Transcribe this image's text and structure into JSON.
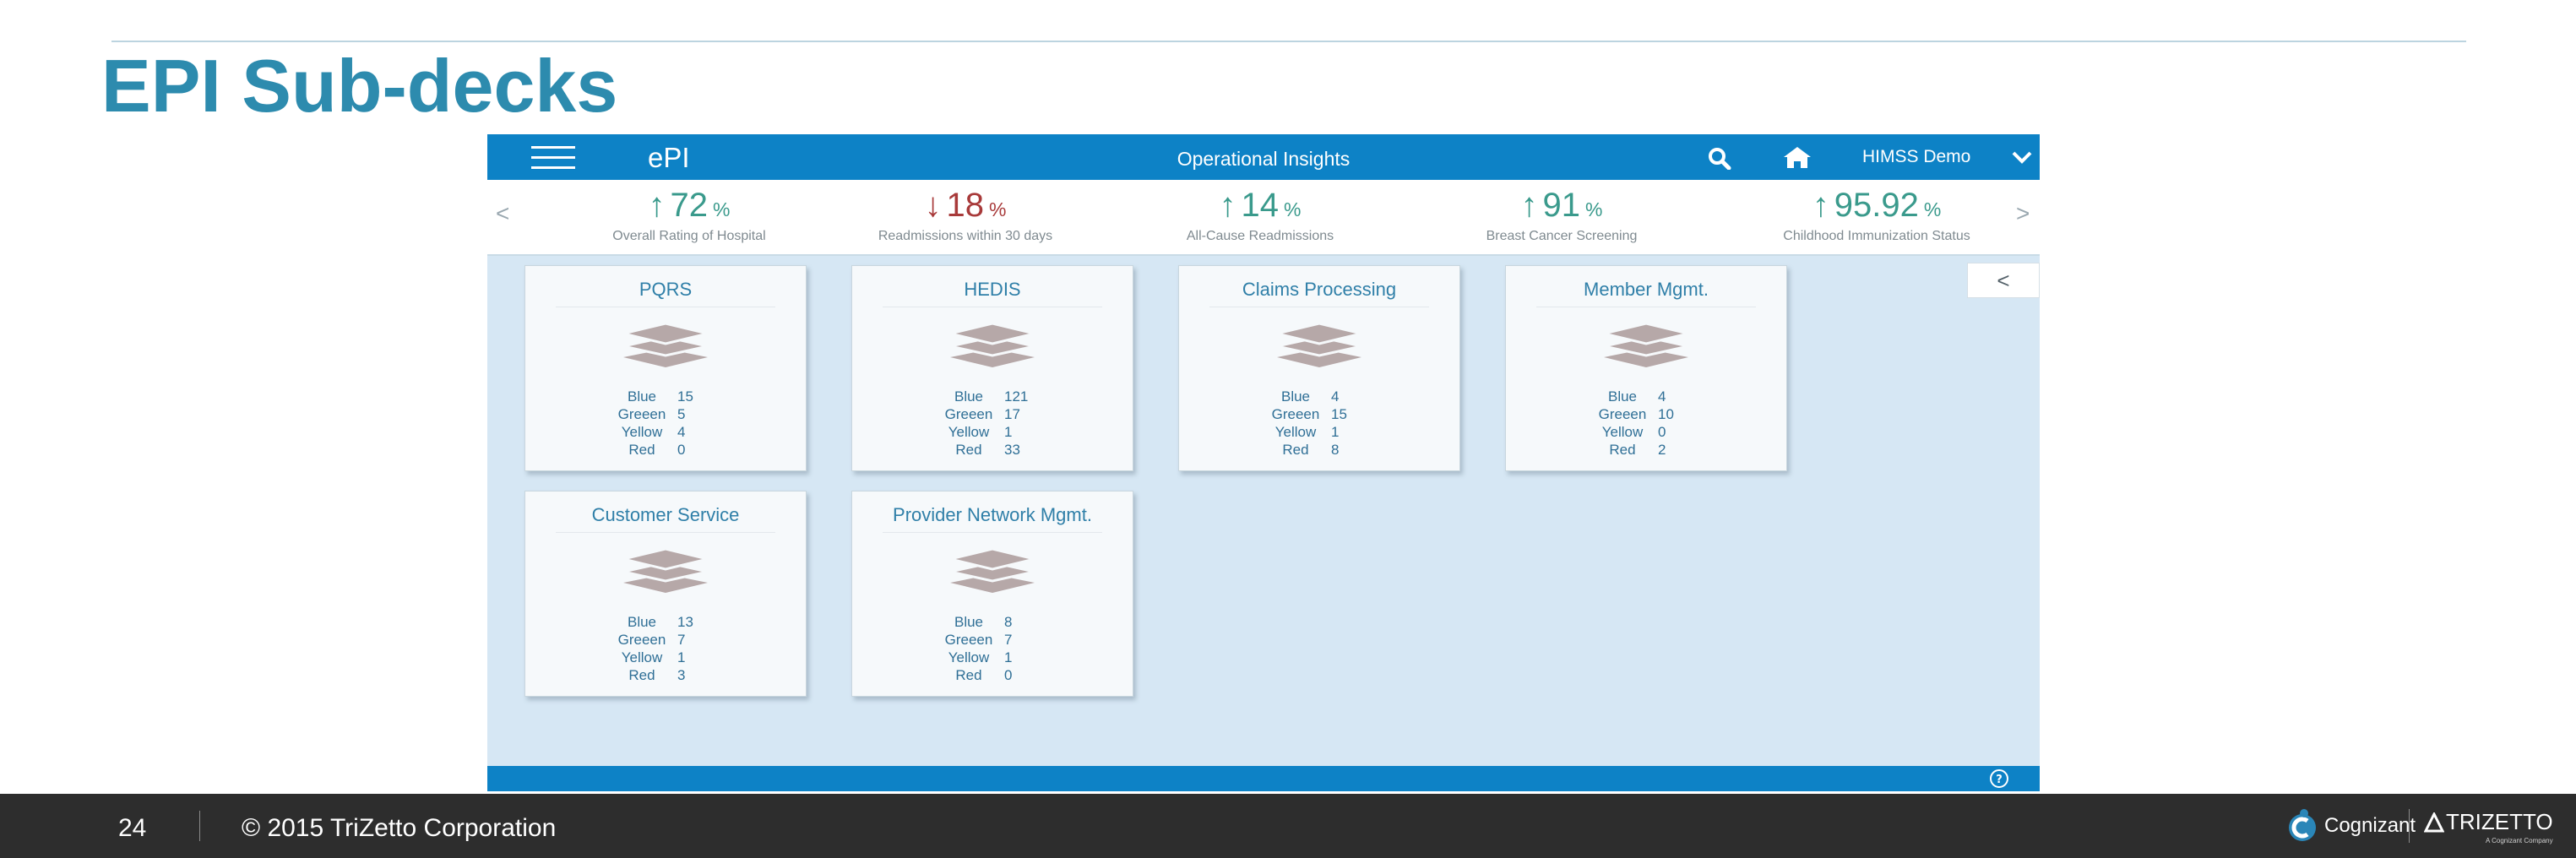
{
  "slide": {
    "title": "EPI Sub-decks",
    "page_number": "24",
    "copyright": "© 2015 TriZetto Corporation",
    "logos": {
      "cognizant": "Cognizant",
      "trizetto": "TRIZETTO",
      "trizetto_sub": "A Cognizant Company"
    }
  },
  "app": {
    "name": "ePI",
    "title": "Operational Insights",
    "user": "HIMSS Demo",
    "icons": {
      "menu": "hamburger-icon",
      "search": "search-icon",
      "home": "home-icon",
      "user_menu": "chevron-down-icon",
      "help": "help-icon",
      "collapse": "chevron-left-icon"
    },
    "colors": {
      "header": "#0d82c6",
      "background": "#d6e7f4",
      "up_value": "#3a9a8c",
      "down_value": "#a83a3a",
      "card_title": "#2f7fa8",
      "stack_icon": "#b6a8a8"
    },
    "kpi_nav": {
      "prev": "<",
      "next": ">"
    },
    "kpis": [
      {
        "arrow": "↑",
        "trend": "up",
        "value": "72",
        "unit": "%",
        "label": "Overall Rating of Hospital"
      },
      {
        "arrow": "↓",
        "trend": "down",
        "value": "18",
        "unit": "%",
        "label": "Readmissions within 30 days"
      },
      {
        "arrow": "↑",
        "trend": "up",
        "value": "14",
        "unit": "%",
        "label": "All-Cause Readmissions"
      },
      {
        "arrow": "↑",
        "trend": "up",
        "value": "91",
        "unit": "%",
        "label": "Breast Cancer Screening"
      },
      {
        "arrow": "↑",
        "trend": "up",
        "value": "95.92",
        "unit": "%",
        "label": "Childhood Immunization Status"
      }
    ],
    "collapse_label": "<",
    "cards": [
      {
        "title": "PQRS",
        "stats": [
          {
            "name": "Blue",
            "value": "15"
          },
          {
            "name": "Greeen",
            "value": "5"
          },
          {
            "name": "Yellow",
            "value": "4"
          },
          {
            "name": "Red",
            "value": "0"
          }
        ]
      },
      {
        "title": "HEDIS",
        "stats": [
          {
            "name": "Blue",
            "value": "121"
          },
          {
            "name": "Greeen",
            "value": "17"
          },
          {
            "name": "Yellow",
            "value": "1"
          },
          {
            "name": "Red",
            "value": "33"
          }
        ]
      },
      {
        "title": "Claims Processing",
        "stats": [
          {
            "name": "Blue",
            "value": "4"
          },
          {
            "name": "Greeen",
            "value": "15"
          },
          {
            "name": "Yellow",
            "value": "1"
          },
          {
            "name": "Red",
            "value": "8"
          }
        ]
      },
      {
        "title": "Member Mgmt.",
        "stats": [
          {
            "name": "Blue",
            "value": "4"
          },
          {
            "name": "Greeen",
            "value": "10"
          },
          {
            "name": "Yellow",
            "value": "0"
          },
          {
            "name": "Red",
            "value": "2"
          }
        ]
      },
      {
        "title": "Customer Service",
        "stats": [
          {
            "name": "Blue",
            "value": "13"
          },
          {
            "name": "Greeen",
            "value": "7"
          },
          {
            "name": "Yellow",
            "value": "1"
          },
          {
            "name": "Red",
            "value": "3"
          }
        ]
      },
      {
        "title": "Provider Network Mgmt.",
        "stats": [
          {
            "name": "Blue",
            "value": "8"
          },
          {
            "name": "Greeen",
            "value": "7"
          },
          {
            "name": "Yellow",
            "value": "1"
          },
          {
            "name": "Red",
            "value": "0"
          }
        ]
      }
    ]
  }
}
